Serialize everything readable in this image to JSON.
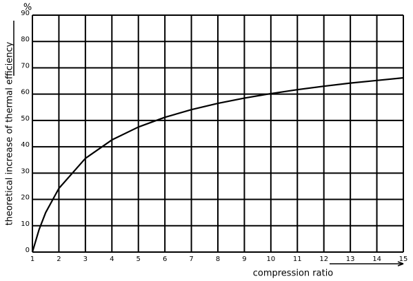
{
  "chart_data": {
    "type": "line",
    "y_label": "theoretical increase of thermal efficiency",
    "y_unit": "%",
    "x_label": "compression ratio",
    "x": [
      1,
      1.25,
      1.5,
      2,
      3,
      4,
      5,
      6,
      7,
      8,
      9,
      10,
      11,
      12,
      13,
      14,
      15
    ],
    "series": [
      {
        "color": "#000000",
        "values": [
          0,
          8.5,
          15.0,
          24.2,
          35.6,
          42.6,
          47.5,
          51.2,
          54.1,
          56.5,
          58.5,
          60.2,
          61.7,
          63.0,
          64.2,
          65.2,
          66.2
        ]
      }
    ],
    "xlim": [
      1,
      15
    ],
    "xticks": [
      1,
      2,
      3,
      4,
      5,
      6,
      7,
      8,
      9,
      10,
      11,
      12,
      13,
      14,
      15
    ],
    "ylim": [
      0,
      90
    ],
    "yticks": [
      0,
      10,
      20,
      30,
      40,
      50,
      60,
      70,
      80,
      90
    ],
    "grid": true
  }
}
